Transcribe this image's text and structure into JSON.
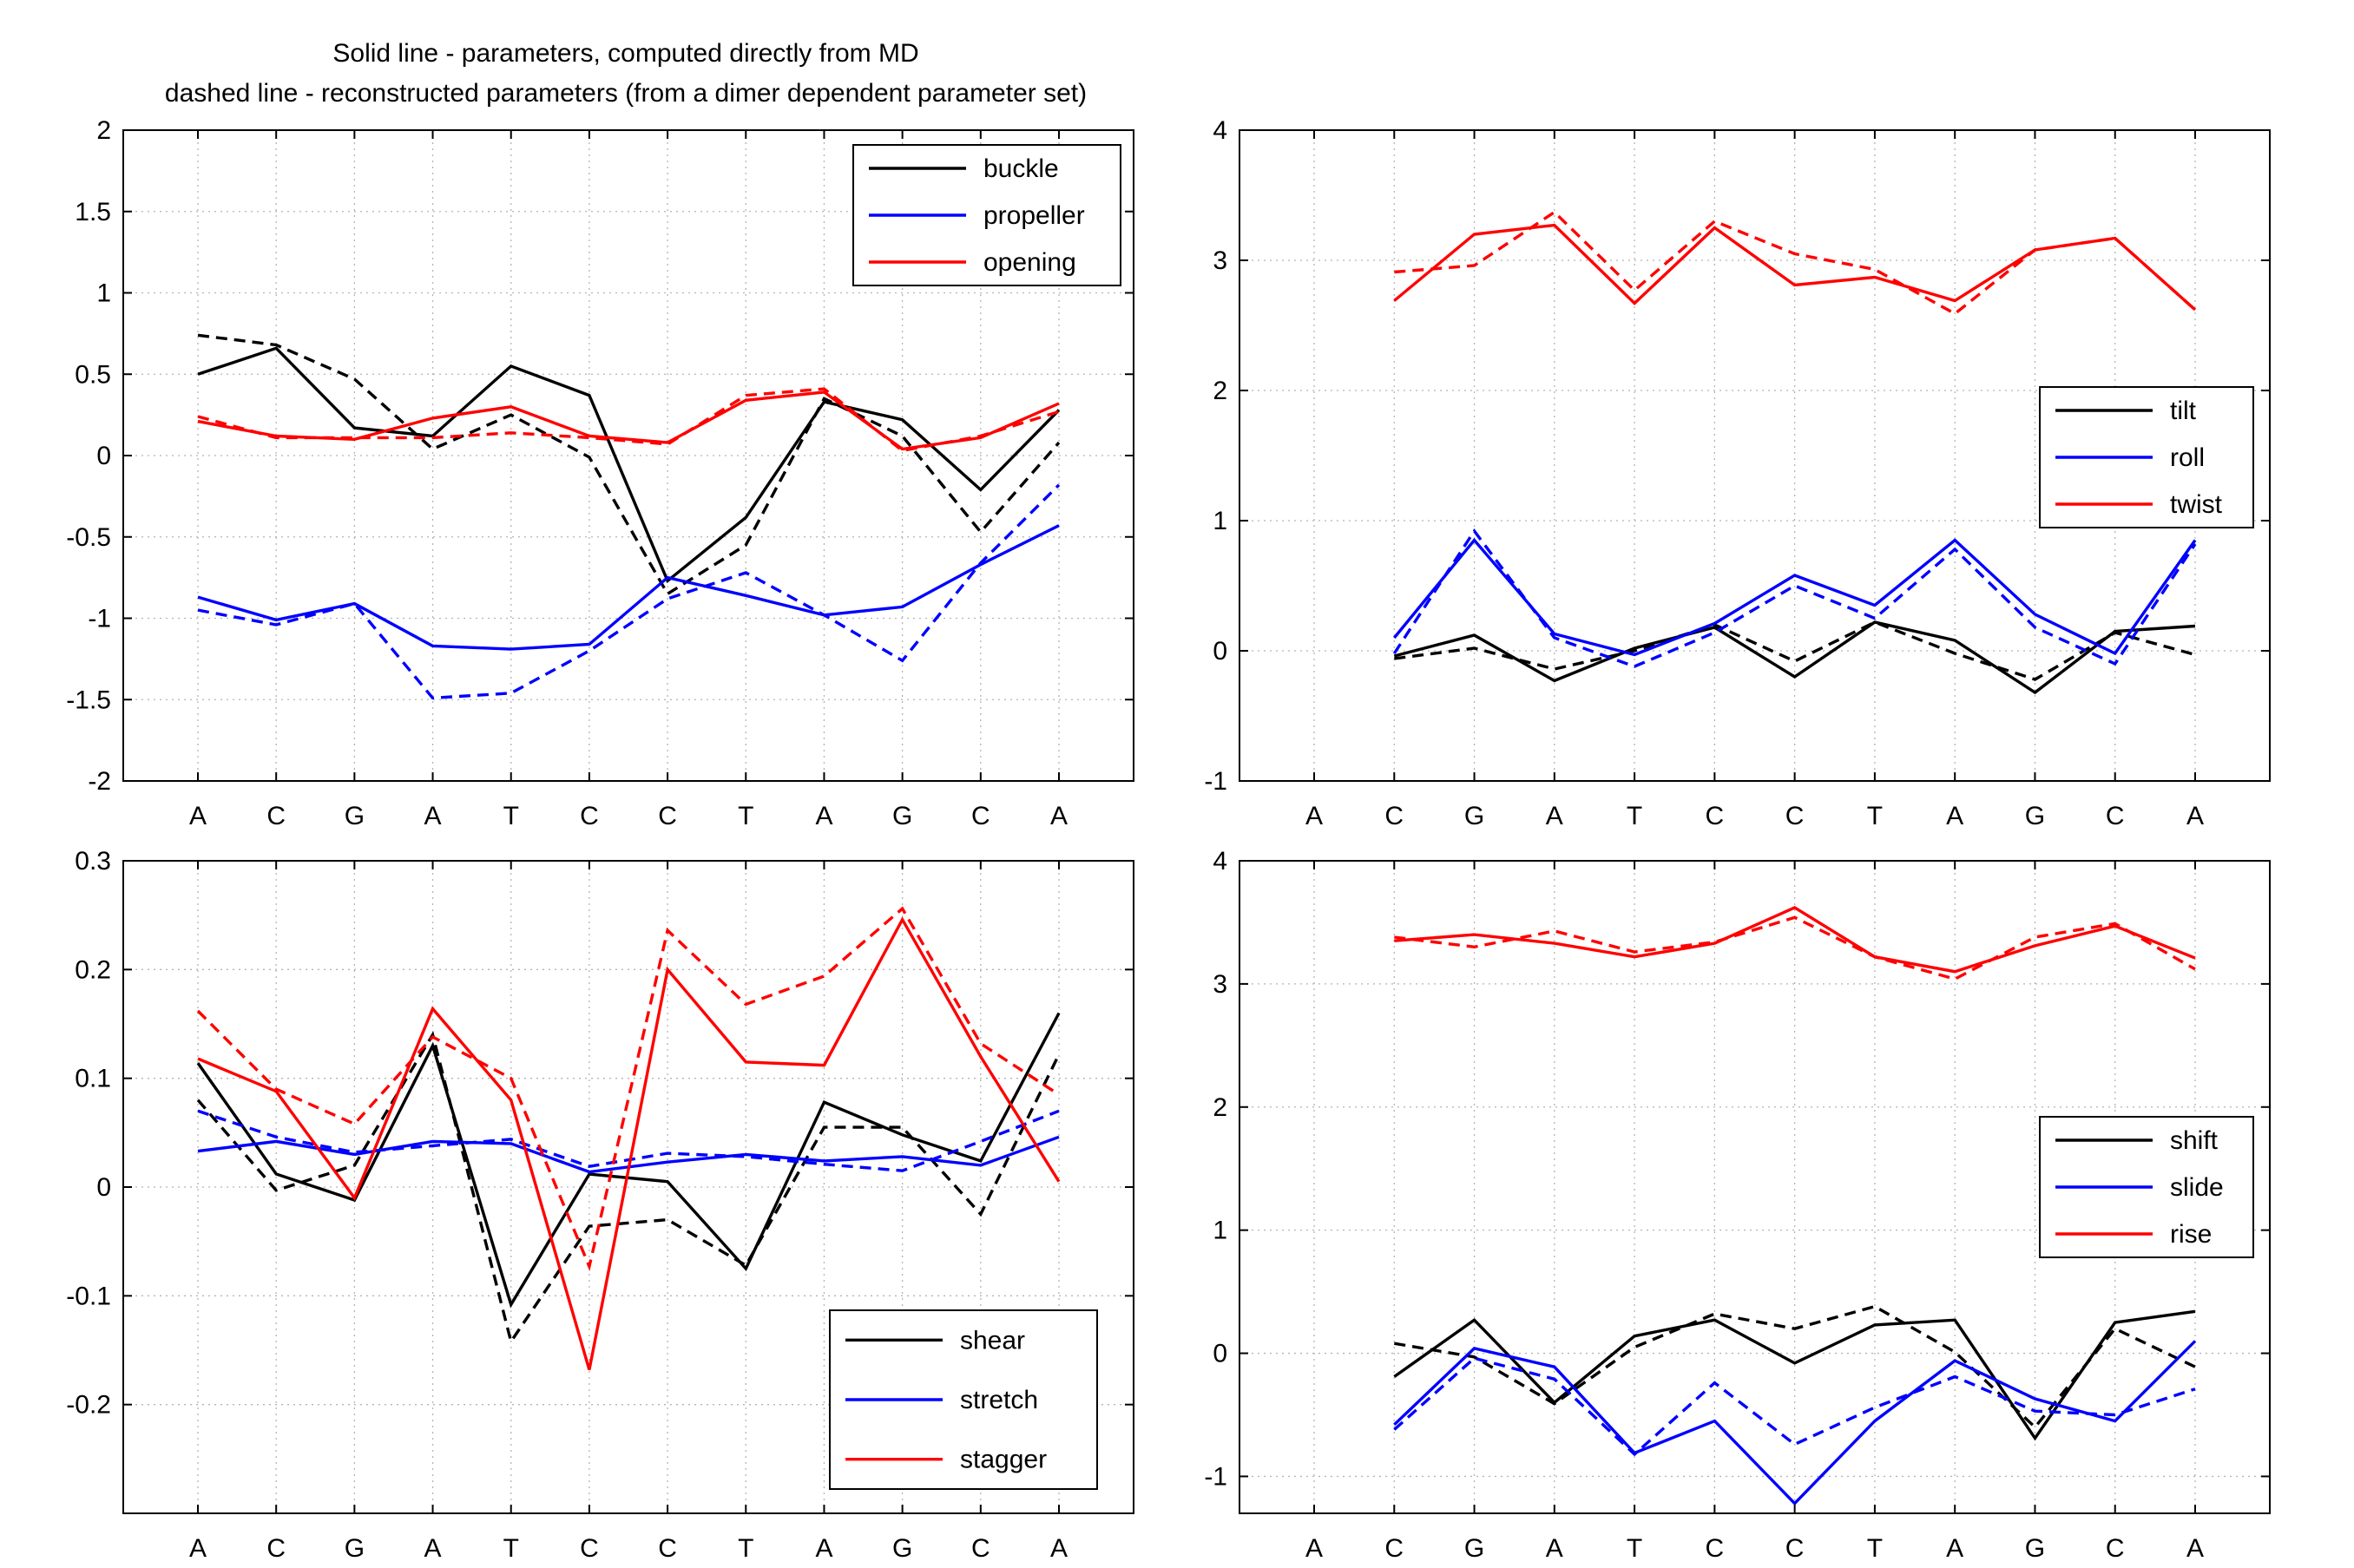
{
  "figure_title": {
    "line1": "Solid line - parameters, computed directly from MD",
    "line2": "dashed line - reconstructed parameters (from a dimer dependent parameter set)"
  },
  "colors": {
    "black": "#000000",
    "blue": "#0000ff",
    "red": "#ff0000"
  },
  "line_styles": {
    "solid": "parameters computed directly from MD",
    "dashed": "reconstructed parameters"
  },
  "chart_data": [
    {
      "type": "line",
      "categories": [
        "A",
        "C",
        "G",
        "A",
        "T",
        "C",
        "C",
        "T",
        "A",
        "G",
        "C",
        "A"
      ],
      "ylim": [
        -2,
        2
      ],
      "yticks": [
        -2,
        -1.5,
        -1,
        -0.5,
        0,
        0.5,
        1,
        1.5,
        2
      ],
      "ytick_labels": [
        "-2",
        "-1.5",
        "-1",
        "-0.5",
        "0",
        "0.5",
        "1",
        "1.5",
        "2"
      ],
      "grid": true,
      "legend_position": "top-right",
      "legend": [
        "buckle",
        "propeller",
        "opening"
      ],
      "series": [
        {
          "name": "buckle",
          "color": "#000000",
          "style": "solid",
          "values": [
            0.5,
            0.66,
            0.17,
            0.12,
            0.55,
            0.37,
            -0.77,
            -0.38,
            0.33,
            0.22,
            -0.21,
            0.28
          ]
        },
        {
          "name": "buckle",
          "color": "#000000",
          "style": "dashed",
          "values": [
            0.74,
            0.68,
            0.47,
            0.04,
            0.25,
            -0.01,
            -0.85,
            -0.55,
            0.35,
            0.12,
            -0.47,
            0.08
          ]
        },
        {
          "name": "propeller",
          "color": "#0000ff",
          "style": "solid",
          "values": [
            -0.87,
            -1.01,
            -0.91,
            -1.17,
            -1.19,
            -1.16,
            -0.75,
            -0.86,
            -0.98,
            -0.93,
            -0.67,
            -0.43
          ]
        },
        {
          "name": "propeller",
          "color": "#0000ff",
          "style": "dashed",
          "values": [
            -0.95,
            -1.04,
            -0.91,
            -1.49,
            -1.46,
            -1.2,
            -0.88,
            -0.72,
            -0.98,
            -1.26,
            -0.66,
            -0.18
          ]
        },
        {
          "name": "opening",
          "color": "#ff0000",
          "style": "solid",
          "values": [
            0.21,
            0.12,
            0.1,
            0.23,
            0.3,
            0.12,
            0.08,
            0.34,
            0.39,
            0.04,
            0.11,
            0.32
          ]
        },
        {
          "name": "opening",
          "color": "#ff0000",
          "style": "dashed",
          "values": [
            0.24,
            0.11,
            0.11,
            0.11,
            0.14,
            0.11,
            0.07,
            0.37,
            0.41,
            0.03,
            0.12,
            0.27
          ]
        }
      ]
    },
    {
      "type": "line",
      "categories": [
        "A",
        "C",
        "G",
        "A",
        "T",
        "C",
        "C",
        "T",
        "A",
        "G",
        "C",
        "A"
      ],
      "ylim": [
        -1,
        4
      ],
      "yticks": [
        -1,
        0,
        1,
        2,
        3,
        4
      ],
      "ytick_labels": [
        "-1",
        "0",
        "1",
        "2",
        "3",
        "4"
      ],
      "grid": true,
      "legend_position": "middle-right",
      "legend": [
        "tilt",
        "roll",
        "twist"
      ],
      "series": [
        {
          "name": "tilt",
          "color": "#000000",
          "style": "solid",
          "values": [
            null,
            -0.04,
            0.12,
            -0.23,
            0.02,
            0.18,
            -0.2,
            0.22,
            0.08,
            -0.32,
            0.15,
            0.19
          ]
        },
        {
          "name": "tilt",
          "color": "#000000",
          "style": "dashed",
          "values": [
            null,
            -0.06,
            0.02,
            -0.14,
            0.0,
            0.2,
            -0.08,
            0.22,
            -0.02,
            -0.22,
            0.14,
            -0.03
          ]
        },
        {
          "name": "roll",
          "color": "#0000ff",
          "style": "solid",
          "values": [
            null,
            0.1,
            0.85,
            0.13,
            -0.03,
            0.21,
            0.58,
            0.35,
            0.85,
            0.28,
            -0.02,
            0.85
          ]
        },
        {
          "name": "roll",
          "color": "#0000ff",
          "style": "dashed",
          "values": [
            null,
            -0.02,
            0.92,
            0.1,
            -0.12,
            0.14,
            0.5,
            0.25,
            0.78,
            0.18,
            -0.1,
            0.82
          ]
        },
        {
          "name": "twist",
          "color": "#ff0000",
          "style": "solid",
          "values": [
            null,
            2.69,
            3.2,
            3.27,
            2.67,
            3.25,
            2.81,
            2.87,
            2.69,
            3.08,
            3.17,
            2.62
          ]
        },
        {
          "name": "twist",
          "color": "#ff0000",
          "style": "dashed",
          "values": [
            null,
            2.91,
            2.96,
            3.37,
            2.77,
            3.3,
            3.05,
            2.93,
            2.59,
            3.08,
            3.17,
            2.62
          ]
        }
      ]
    },
    {
      "type": "line",
      "categories": [
        "A",
        "C",
        "G",
        "A",
        "T",
        "C",
        "C",
        "T",
        "A",
        "G",
        "C",
        "A"
      ],
      "ylim": [
        -0.3,
        0.3
      ],
      "yticks": [
        -0.2,
        -0.1,
        0,
        0.1,
        0.2,
        0.3
      ],
      "ytick_labels": [
        "-0.2",
        "-0.1",
        "0",
        "0.1",
        "0.2",
        "0.3"
      ],
      "grid": true,
      "legend_position": "bottom-right",
      "legend": [
        "shear",
        "stretch",
        "stagger"
      ],
      "series": [
        {
          "name": "shear",
          "color": "#000000",
          "style": "solid",
          "values": [
            0.114,
            0.012,
            -0.012,
            0.13,
            -0.108,
            0.012,
            0.005,
            -0.075,
            0.078,
            0.048,
            0.024,
            0.16
          ]
        },
        {
          "name": "shear",
          "color": "#000000",
          "style": "dashed",
          "values": [
            0.08,
            -0.003,
            0.02,
            0.14,
            -0.142,
            -0.036,
            -0.03,
            -0.072,
            0.055,
            0.055,
            -0.025,
            0.122
          ]
        },
        {
          "name": "stretch",
          "color": "#0000ff",
          "style": "solid",
          "values": [
            0.033,
            0.042,
            0.03,
            0.042,
            0.04,
            0.014,
            0.023,
            0.03,
            0.024,
            0.028,
            0.02,
            0.046
          ]
        },
        {
          "name": "stretch",
          "color": "#0000ff",
          "style": "dashed",
          "values": [
            0.07,
            0.046,
            0.032,
            0.038,
            0.044,
            0.019,
            0.031,
            0.028,
            0.021,
            0.015,
            0.042,
            0.07
          ]
        },
        {
          "name": "stagger",
          "color": "#ff0000",
          "style": "solid",
          "values": [
            0.118,
            0.088,
            -0.01,
            0.164,
            0.08,
            -0.168,
            0.2,
            0.115,
            0.112,
            0.246,
            0.12,
            0.005
          ]
        },
        {
          "name": "stagger",
          "color": "#ff0000",
          "style": "dashed",
          "values": [
            0.162,
            0.09,
            0.058,
            0.138,
            0.1,
            -0.073,
            0.236,
            0.168,
            0.194,
            0.256,
            0.132,
            0.085
          ]
        }
      ]
    },
    {
      "type": "line",
      "categories": [
        "A",
        "C",
        "G",
        "A",
        "T",
        "C",
        "C",
        "T",
        "A",
        "G",
        "C",
        "A"
      ],
      "ylim": [
        -1.3,
        4
      ],
      "yticks": [
        -1,
        0,
        1,
        2,
        3,
        4
      ],
      "ytick_labels": [
        "-1",
        "0",
        "1",
        "2",
        "3",
        "4"
      ],
      "grid": true,
      "legend_position": "middle-right",
      "legend": [
        "shift",
        "slide",
        "rise"
      ],
      "series": [
        {
          "name": "shift",
          "color": "#000000",
          "style": "solid",
          "values": [
            null,
            -0.19,
            0.27,
            -0.4,
            0.14,
            0.27,
            -0.08,
            0.23,
            0.27,
            -0.69,
            0.25,
            0.34
          ]
        },
        {
          "name": "shift",
          "color": "#000000",
          "style": "dashed",
          "values": [
            null,
            0.08,
            -0.03,
            -0.41,
            0.05,
            0.32,
            0.2,
            0.38,
            0.01,
            -0.6,
            0.2,
            -0.11
          ]
        },
        {
          "name": "slide",
          "color": "#0000ff",
          "style": "solid",
          "values": [
            null,
            -0.58,
            0.04,
            -0.11,
            -0.81,
            -0.55,
            -1.22,
            -0.55,
            -0.06,
            -0.37,
            -0.55,
            0.1
          ]
        },
        {
          "name": "slide",
          "color": "#0000ff",
          "style": "dashed",
          "values": [
            null,
            -0.62,
            -0.04,
            -0.21,
            -0.82,
            -0.24,
            -0.74,
            -0.44,
            -0.19,
            -0.47,
            -0.5,
            -0.29
          ]
        },
        {
          "name": "rise",
          "color": "#ff0000",
          "style": "solid",
          "values": [
            null,
            3.35,
            3.4,
            3.33,
            3.22,
            3.33,
            3.62,
            3.22,
            3.1,
            3.31,
            3.47,
            3.21
          ]
        },
        {
          "name": "rise",
          "color": "#ff0000",
          "style": "dashed",
          "values": [
            null,
            3.38,
            3.3,
            3.43,
            3.26,
            3.34,
            3.54,
            3.22,
            3.04,
            3.38,
            3.49,
            3.12
          ]
        }
      ]
    }
  ]
}
